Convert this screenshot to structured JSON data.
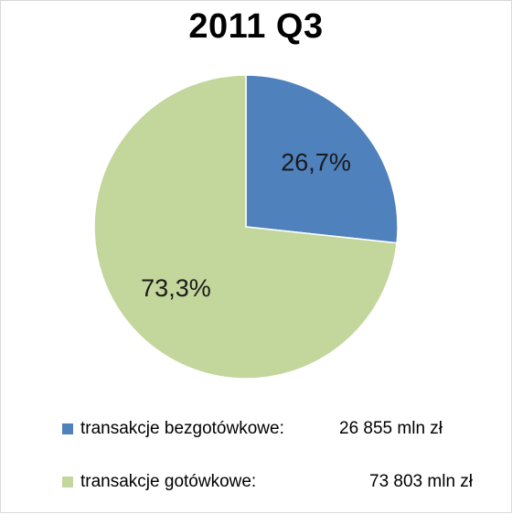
{
  "chart_data": {
    "type": "pie",
    "title": "2011 Q3",
    "slices": [
      {
        "name": "transakcje bezgotówkowe:",
        "value": 26.7,
        "label": "26,7%",
        "amount_label": "26 855 mln zł",
        "color": "#4f81bd"
      },
      {
        "name": "transakcje gotówkowe:",
        "value": 73.3,
        "label": "73,3%",
        "amount_label": "73 803 mln zł",
        "color": "#c3d69b"
      }
    ],
    "legend_position": "bottom",
    "start_angle_deg": 0,
    "direction": "clockwise"
  }
}
